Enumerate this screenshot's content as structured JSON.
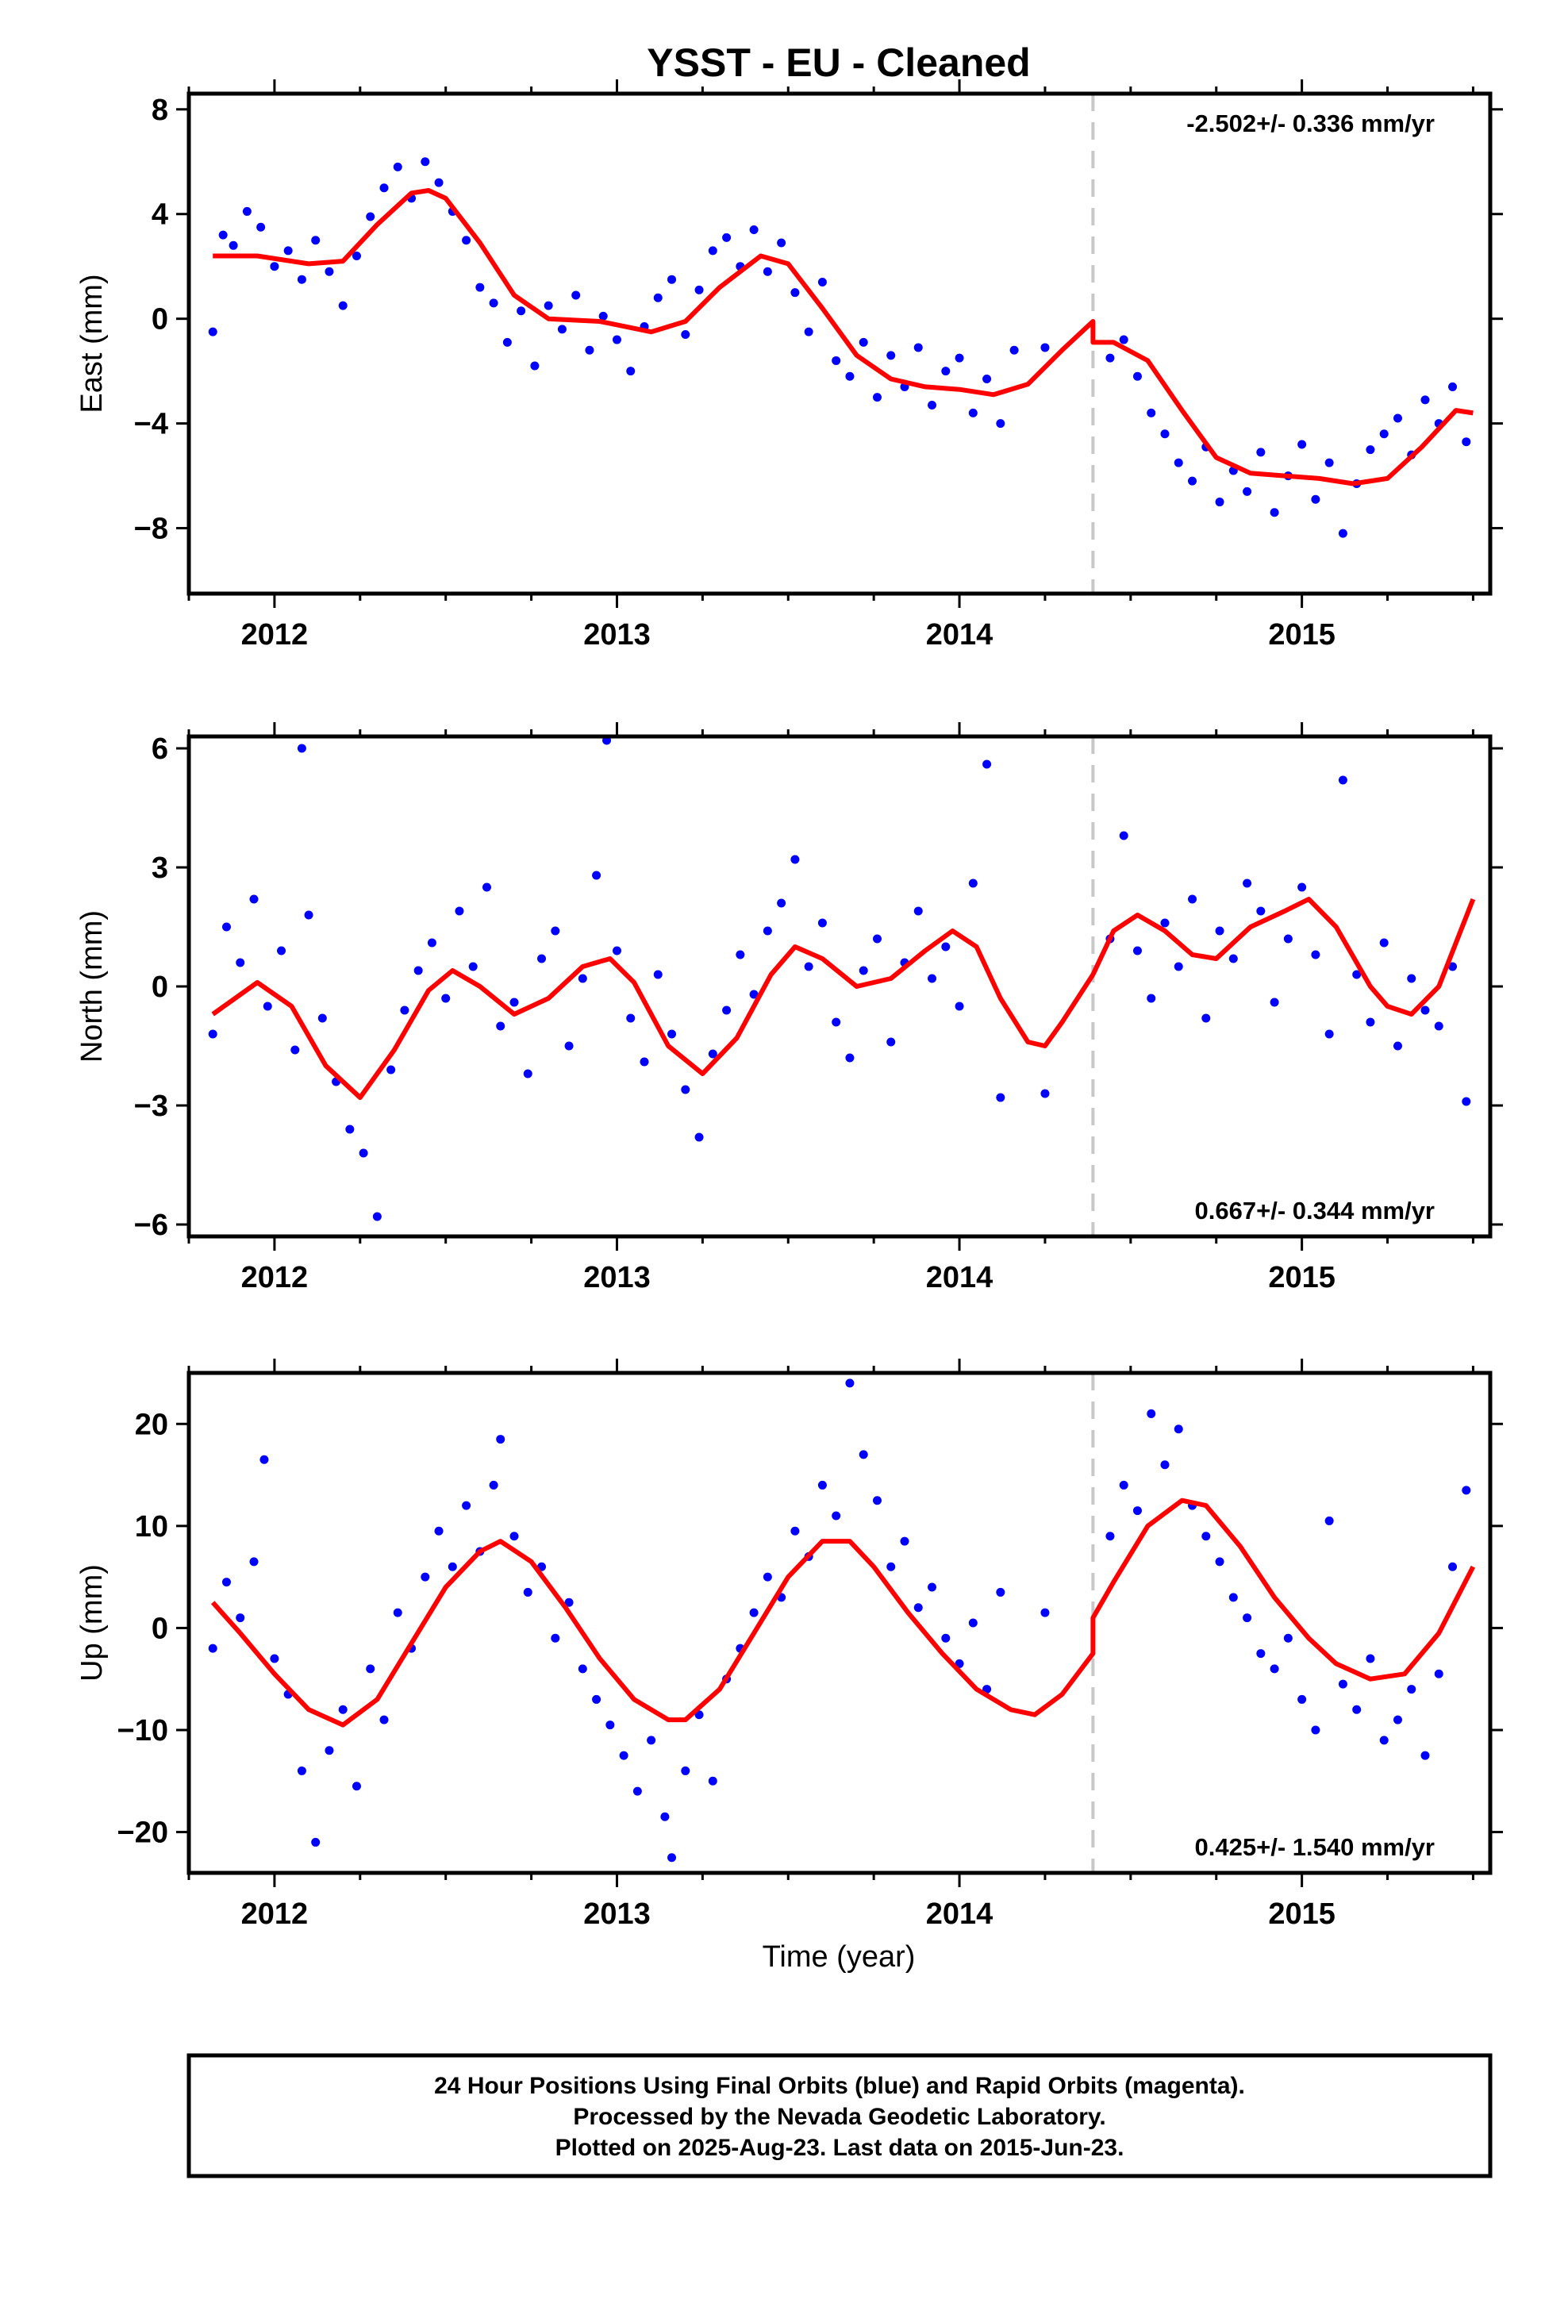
{
  "title": "YSST  - EU - Cleaned",
  "xlabel": "Time (year)",
  "footer": [
    "24 Hour Positions Using Final Orbits (blue) and Rapid Orbits (magenta).",
    "Processed by the Nevada Geodetic Laboratory.",
    "Plotted on 2025-Aug-23. Last data on 2015-Jun-23."
  ],
  "colors": {
    "points": "#0000ff",
    "model": "#ff0000",
    "event": "#c8c8c8",
    "frame": "#000000"
  },
  "chart_data": [
    {
      "type": "scatter",
      "component": "east",
      "ylabel": "East (mm)",
      "rate": "-2.502+/- 0.336 mm/yr",
      "rate_position": "top-right",
      "xlim": [
        2011.75,
        2015.55
      ],
      "ylim": [
        -10.5,
        8.6
      ],
      "yticks": [
        -8,
        -4,
        0,
        4,
        8
      ],
      "yticklabels": [
        "−8",
        "−4",
        "0",
        "4",
        "8"
      ],
      "xticks": [
        2012,
        2013,
        2014,
        2015
      ],
      "xticklabels": [
        "2012",
        "2013",
        "2014",
        "2015"
      ],
      "event_line_x": 2014.39,
      "series": [
        {
          "kind": "points",
          "x": [
            2011.82,
            2011.85,
            2011.88,
            2011.92,
            2011.96,
            2012.0,
            2012.04,
            2012.08,
            2012.12,
            2012.16,
            2012.2,
            2012.24,
            2012.28,
            2012.32,
            2012.36,
            2012.4,
            2012.44,
            2012.48,
            2012.52,
            2012.56,
            2012.6,
            2012.64,
            2012.68,
            2012.72,
            2012.76,
            2012.8,
            2012.84,
            2012.88,
            2012.92,
            2012.96,
            2013.0,
            2013.04,
            2013.08,
            2013.12,
            2013.16,
            2013.2,
            2013.24,
            2013.28,
            2013.32,
            2013.36,
            2013.4,
            2013.44,
            2013.48,
            2013.52,
            2013.56,
            2013.6,
            2013.64,
            2013.68,
            2013.72,
            2013.76,
            2013.8,
            2013.84,
            2013.88,
            2013.92,
            2013.96,
            2014.0,
            2014.04,
            2014.08,
            2014.12,
            2014.16,
            2014.25,
            2014.44,
            2014.48,
            2014.52,
            2014.56,
            2014.6,
            2014.64,
            2014.68,
            2014.72,
            2014.76,
            2014.8,
            2014.84,
            2014.88,
            2014.92,
            2014.96,
            2015.0,
            2015.04,
            2015.08,
            2015.12,
            2015.16,
            2015.2,
            2015.24,
            2015.28,
            2015.32,
            2015.36,
            2015.4,
            2015.44,
            2015.48
          ],
          "y": [
            -0.5,
            3.2,
            2.8,
            4.1,
            3.5,
            2.0,
            2.6,
            1.5,
            3.0,
            1.8,
            0.5,
            2.4,
            3.9,
            5.0,
            5.8,
            4.6,
            6.0,
            5.2,
            4.1,
            3.0,
            1.2,
            0.6,
            -0.9,
            0.3,
            -1.8,
            0.5,
            -0.4,
            0.9,
            -1.2,
            0.1,
            -0.8,
            -2.0,
            -0.3,
            0.8,
            1.5,
            -0.6,
            1.1,
            2.6,
            3.1,
            2.0,
            3.4,
            1.8,
            2.9,
            1.0,
            -0.5,
            1.4,
            -1.6,
            -2.2,
            -0.9,
            -3.0,
            -1.4,
            -2.6,
            -1.1,
            -3.3,
            -2.0,
            -1.5,
            -3.6,
            -2.3,
            -4.0,
            -1.2,
            -1.1,
            -1.5,
            -0.8,
            -2.2,
            -3.6,
            -4.4,
            -5.5,
            -6.2,
            -4.9,
            -7.0,
            -5.8,
            -6.6,
            -5.1,
            -7.4,
            -6.0,
            -4.8,
            -6.9,
            -5.5,
            -8.2,
            -6.3,
            -5.0,
            -4.4,
            -3.8,
            -5.2,
            -3.1,
            -4.0,
            -2.6,
            -4.7
          ]
        },
        {
          "kind": "model",
          "x": [
            2011.82,
            2011.95,
            2012.1,
            2012.2,
            2012.3,
            2012.4,
            2012.45,
            2012.5,
            2012.6,
            2012.7,
            2012.8,
            2012.95,
            2013.1,
            2013.2,
            2013.3,
            2013.42,
            2013.5,
            2013.6,
            2013.7,
            2013.8,
            2013.9,
            2014.0,
            2014.1,
            2014.2,
            2014.3,
            2014.39,
            2014.39,
            2014.45,
            2014.55,
            2014.65,
            2014.75,
            2014.85,
            2014.95,
            2015.05,
            2015.15,
            2015.25,
            2015.35,
            2015.45,
            2015.5
          ],
          "y": [
            2.4,
            2.4,
            2.1,
            2.2,
            3.6,
            4.8,
            4.9,
            4.6,
            2.9,
            0.9,
            0.0,
            -0.1,
            -0.5,
            -0.1,
            1.2,
            2.4,
            2.1,
            0.4,
            -1.4,
            -2.3,
            -2.6,
            -2.7,
            -2.9,
            -2.5,
            -1.2,
            -0.1,
            -0.9,
            -0.9,
            -1.6,
            -3.5,
            -5.3,
            -5.9,
            -6.0,
            -6.1,
            -6.3,
            -6.1,
            -4.9,
            -3.5,
            -3.6
          ]
        }
      ]
    },
    {
      "type": "scatter",
      "component": "north",
      "ylabel": "North (mm)",
      "rate": "0.667+/- 0.344 mm/yr",
      "rate_position": "bottom-right",
      "xlim": [
        2011.75,
        2015.55
      ],
      "ylim": [
        -6.3,
        6.3
      ],
      "yticks": [
        -6,
        -3,
        0,
        3,
        6
      ],
      "yticklabels": [
        "−6",
        "−3",
        "0",
        "3",
        "6"
      ],
      "xticks": [
        2012,
        2013,
        2014,
        2015
      ],
      "xticklabels": [
        "2012",
        "2013",
        "2014",
        "2015"
      ],
      "event_line_x": 2014.39,
      "series": [
        {
          "kind": "points",
          "x": [
            2011.82,
            2011.86,
            2011.9,
            2011.94,
            2011.98,
            2012.02,
            2012.06,
            2012.08,
            2012.1,
            2012.14,
            2012.18,
            2012.22,
            2012.26,
            2012.3,
            2012.34,
            2012.38,
            2012.42,
            2012.46,
            2012.5,
            2012.54,
            2012.58,
            2012.62,
            2012.66,
            2012.7,
            2012.74,
            2012.78,
            2012.82,
            2012.86,
            2012.9,
            2012.94,
            2012.97,
            2013.0,
            2013.04,
            2013.08,
            2013.12,
            2013.16,
            2013.2,
            2013.24,
            2013.28,
            2013.32,
            2013.36,
            2013.4,
            2013.44,
            2013.48,
            2013.52,
            2013.56,
            2013.6,
            2013.64,
            2013.68,
            2013.72,
            2013.76,
            2013.8,
            2013.84,
            2013.88,
            2013.92,
            2013.96,
            2014.0,
            2014.04,
            2014.08,
            2014.12,
            2014.25,
            2014.44,
            2014.48,
            2014.52,
            2014.56,
            2014.6,
            2014.64,
            2014.68,
            2014.72,
            2014.76,
            2014.8,
            2014.84,
            2014.88,
            2014.92,
            2014.96,
            2015.0,
            2015.04,
            2015.08,
            2015.12,
            2015.16,
            2015.2,
            2015.24,
            2015.28,
            2015.32,
            2015.36,
            2015.4,
            2015.44,
            2015.48
          ],
          "y": [
            -1.2,
            1.5,
            0.6,
            2.2,
            -0.5,
            0.9,
            -1.6,
            6.0,
            1.8,
            -0.8,
            -2.4,
            -3.6,
            -4.2,
            -5.8,
            -2.1,
            -0.6,
            0.4,
            1.1,
            -0.3,
            1.9,
            0.5,
            2.5,
            -1.0,
            -0.4,
            -2.2,
            0.7,
            1.4,
            -1.5,
            0.2,
            2.8,
            6.2,
            0.9,
            -0.8,
            -1.9,
            0.3,
            -1.2,
            -2.6,
            -3.8,
            -1.7,
            -0.6,
            0.8,
            -0.2,
            1.4,
            2.1,
            3.2,
            0.5,
            1.6,
            -0.9,
            -1.8,
            0.4,
            1.2,
            -1.4,
            0.6,
            1.9,
            0.2,
            1.0,
            -0.5,
            2.6,
            5.6,
            -2.8,
            -2.7,
            1.2,
            3.8,
            0.9,
            -0.3,
            1.6,
            0.5,
            2.2,
            -0.8,
            1.4,
            0.7,
            2.6,
            1.9,
            -0.4,
            1.2,
            2.5,
            0.8,
            -1.2,
            5.2,
            0.3,
            -0.9,
            1.1,
            -1.5,
            0.2,
            -0.6,
            -1.0,
            0.5,
            -2.9
          ]
        },
        {
          "kind": "model",
          "x": [
            2011.82,
            2011.95,
            2012.05,
            2012.15,
            2012.25,
            2012.35,
            2012.45,
            2012.52,
            2012.6,
            2012.7,
            2012.8,
            2012.9,
            2012.98,
            2013.05,
            2013.15,
            2013.25,
            2013.35,
            2013.45,
            2013.52,
            2013.6,
            2013.7,
            2013.8,
            2013.9,
            2013.98,
            2014.05,
            2014.12,
            2014.2,
            2014.25,
            2014.3,
            2014.39,
            2014.45,
            2014.52,
            2014.6,
            2014.68,
            2014.75,
            2014.85,
            2014.95,
            2015.02,
            2015.1,
            2015.2,
            2015.25,
            2015.32,
            2015.4,
            2015.5
          ],
          "y": [
            -0.7,
            0.1,
            -0.5,
            -2.0,
            -2.8,
            -1.6,
            -0.1,
            0.4,
            0.0,
            -0.7,
            -0.3,
            0.5,
            0.7,
            0.1,
            -1.5,
            -2.2,
            -1.3,
            0.3,
            1.0,
            0.7,
            0.0,
            0.2,
            0.9,
            1.4,
            1.0,
            -0.3,
            -1.4,
            -1.5,
            -0.9,
            0.3,
            1.4,
            1.8,
            1.4,
            0.8,
            0.7,
            1.5,
            1.9,
            2.2,
            1.5,
            0.0,
            -0.5,
            -0.7,
            0.0,
            2.2
          ]
        }
      ]
    },
    {
      "type": "scatter",
      "component": "up",
      "ylabel": "Up (mm)",
      "rate": "0.425+/- 1.540 mm/yr",
      "rate_position": "bottom-right",
      "xlim": [
        2011.75,
        2015.55
      ],
      "ylim": [
        -24,
        25
      ],
      "yticks": [
        -20,
        -10,
        0,
        10,
        20
      ],
      "yticklabels": [
        "−20",
        "−10",
        "0",
        "10",
        "20"
      ],
      "xticks": [
        2012,
        2013,
        2014,
        2015
      ],
      "xticklabels": [
        "2012",
        "2013",
        "2014",
        "2015"
      ],
      "event_line_x": 2014.39,
      "series": [
        {
          "kind": "points",
          "x": [
            2011.82,
            2011.86,
            2011.9,
            2011.94,
            2011.97,
            2012.0,
            2012.04,
            2012.08,
            2012.12,
            2012.16,
            2012.2,
            2012.24,
            2012.28,
            2012.32,
            2012.36,
            2012.4,
            2012.44,
            2012.48,
            2012.52,
            2012.56,
            2012.6,
            2012.64,
            2012.66,
            2012.7,
            2012.74,
            2012.78,
            2012.82,
            2012.86,
            2012.9,
            2012.94,
            2012.98,
            2013.02,
            2013.06,
            2013.1,
            2013.14,
            2013.16,
            2013.2,
            2013.24,
            2013.28,
            2013.32,
            2013.36,
            2013.4,
            2013.44,
            2013.48,
            2013.52,
            2013.56,
            2013.6,
            2013.64,
            2013.68,
            2013.72,
            2013.76,
            2013.8,
            2013.84,
            2013.88,
            2013.92,
            2013.96,
            2014.0,
            2014.04,
            2014.08,
            2014.12,
            2014.25,
            2014.44,
            2014.48,
            2014.52,
            2014.56,
            2014.6,
            2014.64,
            2014.68,
            2014.72,
            2014.76,
            2014.8,
            2014.84,
            2014.88,
            2014.92,
            2014.96,
            2015.0,
            2015.04,
            2015.08,
            2015.12,
            2015.16,
            2015.2,
            2015.24,
            2015.28,
            2015.32,
            2015.36,
            2015.4,
            2015.44,
            2015.48
          ],
          "y": [
            -2.0,
            4.5,
            1.0,
            6.5,
            16.5,
            -3.0,
            -6.5,
            -14.0,
            -21.0,
            -12.0,
            -8.0,
            -15.5,
            -4.0,
            -9.0,
            1.5,
            -2.0,
            5.0,
            9.5,
            6.0,
            12.0,
            7.5,
            14.0,
            18.5,
            9.0,
            3.5,
            6.0,
            -1.0,
            2.5,
            -4.0,
            -7.0,
            -9.5,
            -12.5,
            -16.0,
            -11.0,
            -18.5,
            -22.5,
            -14.0,
            -8.5,
            -15.0,
            -5.0,
            -2.0,
            1.5,
            5.0,
            3.0,
            9.5,
            7.0,
            14.0,
            11.0,
            24.0,
            17.0,
            12.5,
            6.0,
            8.5,
            2.0,
            4.0,
            -1.0,
            -3.5,
            0.5,
            -6.0,
            3.5,
            1.5,
            9.0,
            14.0,
            11.5,
            21.0,
            16.0,
            19.5,
            12.0,
            9.0,
            6.5,
            3.0,
            1.0,
            -2.5,
            -4.0,
            -1.0,
            -7.0,
            -10.0,
            10.5,
            -5.5,
            -8.0,
            -3.0,
            -11.0,
            -9.0,
            -6.0,
            -12.5,
            -4.5,
            6.0,
            13.5
          ]
        },
        {
          "kind": "model",
          "x": [
            2011.82,
            2011.9,
            2012.0,
            2012.1,
            2012.2,
            2012.3,
            2012.4,
            2012.5,
            2012.6,
            2012.66,
            2012.75,
            2012.85,
            2012.95,
            2013.05,
            2013.15,
            2013.2,
            2013.3,
            2013.4,
            2013.5,
            2013.6,
            2013.68,
            2013.75,
            2013.85,
            2013.95,
            2014.05,
            2014.15,
            2014.22,
            2014.3,
            2014.39,
            2014.39,
            2014.45,
            2014.55,
            2014.65,
            2014.72,
            2014.82,
            2014.92,
            2015.02,
            2015.1,
            2015.2,
            2015.3,
            2015.4,
            2015.5
          ],
          "y": [
            2.5,
            -0.5,
            -4.5,
            -8.0,
            -9.5,
            -7.0,
            -1.5,
            4.0,
            7.5,
            8.5,
            6.5,
            2.0,
            -3.0,
            -7.0,
            -9.0,
            -9.0,
            -6.0,
            -0.5,
            5.0,
            8.5,
            8.5,
            6.0,
            1.5,
            -2.5,
            -6.0,
            -8.0,
            -8.5,
            -6.5,
            -2.5,
            1.0,
            4.5,
            10.0,
            12.5,
            12.0,
            8.0,
            3.0,
            -1.0,
            -3.5,
            -5.0,
            -4.5,
            -0.5,
            6.0
          ]
        }
      ]
    }
  ]
}
